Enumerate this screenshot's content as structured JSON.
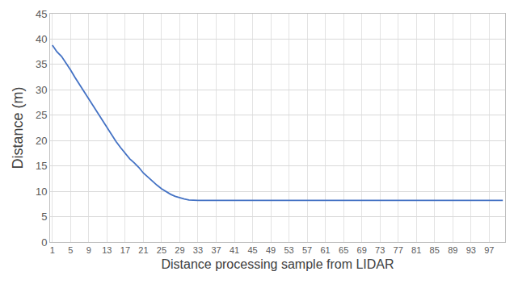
{
  "chart_data": {
    "type": "line",
    "x_label": "Distance processing sample from LIDAR",
    "y_label": "Distance (m)",
    "x": [
      1,
      2,
      3,
      4,
      5,
      6,
      7,
      8,
      9,
      10,
      11,
      12,
      13,
      14,
      15,
      16,
      17,
      18,
      19,
      20,
      21,
      22,
      23,
      24,
      25,
      26,
      27,
      28,
      29,
      30,
      31,
      32,
      33,
      34,
      35,
      36,
      37,
      38,
      39,
      40,
      41,
      42,
      43,
      44,
      45,
      46,
      47,
      48,
      49,
      50,
      51,
      52,
      53,
      54,
      55,
      56,
      57,
      58,
      59,
      60,
      61,
      62,
      63,
      64,
      65,
      66,
      67,
      68,
      69,
      70,
      71,
      72,
      73,
      74,
      75,
      76,
      77,
      78,
      79,
      80,
      81,
      82,
      83,
      84,
      85,
      86,
      87,
      88,
      89,
      90,
      91,
      92,
      93,
      94,
      95,
      96,
      97,
      98,
      99,
      100
    ],
    "values": [
      38.8,
      37.5,
      36.6,
      35.3,
      33.9,
      32.4,
      31.0,
      29.6,
      28.0,
      26.6,
      25.3,
      23.8,
      22.4,
      21.0,
      19.8,
      18.6,
      17.4,
      16.4,
      15.6,
      14.7,
      13.6,
      12.8,
      11.9,
      11.2,
      10.5,
      9.9,
      9.4,
      9.0,
      8.7,
      8.5,
      8.3,
      8.2,
      8.2,
      8.2,
      8.2,
      8.2,
      8.2,
      8.2,
      8.2,
      8.2,
      8.2,
      8.1,
      8.2,
      8.2,
      8.2,
      8.2,
      8.1,
      8.2,
      8.2,
      8.2,
      8.2,
      8.2,
      8.2,
      8.2,
      8.2,
      8.2,
      8.2,
      8.2,
      8.2,
      8.2,
      8.2,
      8.2,
      8.2,
      8.2,
      8.2,
      8.2,
      8.2,
      8.2,
      8.2,
      8.2,
      8.2,
      8.2,
      8.2,
      8.2,
      8.2,
      8.2,
      8.2,
      8.2,
      8.2,
      8.2,
      8.2,
      8.2,
      8.2,
      8.2,
      8.2,
      8.2,
      8.2,
      8.2,
      8.2,
      8.2,
      8.2,
      8.2,
      8.2,
      8.2,
      8.2,
      8.2,
      8.2,
      8.2,
      8.2,
      8.2
    ],
    "color": "#4472c4",
    "xlim": [
      0.5,
      100.5
    ],
    "xticks": [
      1,
      5,
      9,
      13,
      17,
      21,
      25,
      29,
      33,
      37,
      41,
      45,
      49,
      53,
      57,
      61,
      65,
      69,
      73,
      77,
      81,
      85,
      89,
      93,
      97
    ],
    "ylim": [
      0,
      45
    ],
    "yticks": [
      0,
      5,
      10,
      15,
      20,
      25,
      30,
      35,
      40,
      45
    ],
    "grid": true
  }
}
